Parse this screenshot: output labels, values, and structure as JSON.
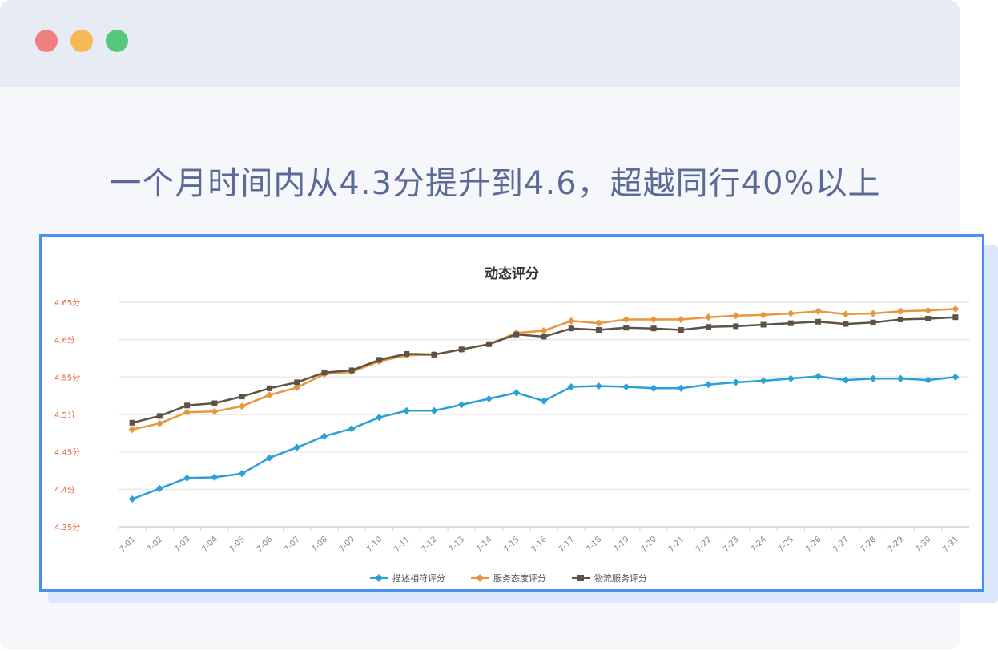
{
  "headline": "一个月时间内从4.3分提升到4.6，超越同行40%以上",
  "colors": {
    "series_blue": "#2a9fd8",
    "series_orange": "#e9973c",
    "series_dark": "#5c5346",
    "tick_label": "#e8603c",
    "frame": "#4a90f0",
    "headline": "#5b6b95"
  },
  "chart_data": {
    "type": "line",
    "title": "动态评分",
    "xlabel": "",
    "ylabel": "",
    "ylim": [
      4.35,
      4.65
    ],
    "yticks": [
      {
        "value": 4.65,
        "label": "4.65分"
      },
      {
        "value": 4.6,
        "label": "4.6分"
      },
      {
        "value": 4.55,
        "label": "4.55分"
      },
      {
        "value": 4.5,
        "label": "4.5分"
      },
      {
        "value": 4.45,
        "label": "4.45分"
      },
      {
        "value": 4.4,
        "label": "4.4分"
      },
      {
        "value": 4.35,
        "label": "4.35分"
      }
    ],
    "grid": true,
    "legend_position": "bottom",
    "categories": [
      "7-01",
      "7-02",
      "7-03",
      "7-04",
      "7-05",
      "7-06",
      "7-07",
      "7-08",
      "7-09",
      "7-10",
      "7-11",
      "7-12",
      "7-13",
      "7-14",
      "7-15",
      "7-16",
      "7-17",
      "7-18",
      "7-19",
      "7-20",
      "7-21",
      "7-22",
      "7-23",
      "7-24",
      "7-25",
      "7-26",
      "7-27",
      "7-28",
      "7-29",
      "7-30",
      "7-31"
    ],
    "series": [
      {
        "name": "描述相符评分",
        "color": "#2a9fd8",
        "marker": "diamond",
        "values": [
          4.387,
          4.401,
          4.415,
          4.416,
          4.421,
          4.442,
          4.456,
          4.471,
          4.481,
          4.496,
          4.505,
          4.505,
          4.513,
          4.521,
          4.529,
          4.518,
          4.537,
          4.538,
          4.537,
          4.535,
          4.535,
          4.54,
          4.543,
          4.545,
          4.548,
          4.551,
          4.546,
          4.548,
          4.548,
          4.546,
          4.55
        ]
      },
      {
        "name": "服务态度评分",
        "color": "#e9973c",
        "marker": "diamond",
        "values": [
          4.48,
          4.488,
          4.503,
          4.504,
          4.511,
          4.526,
          4.536,
          4.554,
          4.557,
          4.571,
          4.579,
          4.58,
          4.587,
          4.594,
          4.609,
          4.612,
          4.625,
          4.622,
          4.627,
          4.627,
          4.627,
          4.63,
          4.632,
          4.633,
          4.635,
          4.638,
          4.634,
          4.635,
          4.638,
          4.639,
          4.641
        ]
      },
      {
        "name": "物流服务评分",
        "color": "#5c5346",
        "marker": "square",
        "values": [
          4.489,
          4.498,
          4.512,
          4.515,
          4.524,
          4.535,
          4.543,
          4.556,
          4.559,
          4.573,
          4.581,
          4.58,
          4.587,
          4.594,
          4.607,
          4.604,
          4.615,
          4.613,
          4.616,
          4.615,
          4.613,
          4.617,
          4.618,
          4.62,
          4.622,
          4.624,
          4.621,
          4.623,
          4.627,
          4.628,
          4.63
        ]
      }
    ]
  }
}
